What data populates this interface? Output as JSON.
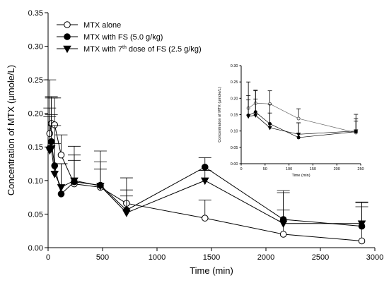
{
  "chart_data": [
    {
      "type": "line",
      "xlabel": "Time (min)",
      "ylabel": "Concentration of MTX (μmole/L)",
      "xlim": [
        0,
        3000
      ],
      "ylim": [
        0,
        0.35
      ],
      "xticks": [
        0,
        500,
        1000,
        1500,
        2000,
        2500,
        3000
      ],
      "yticks": [
        0.0,
        0.05,
        0.1,
        0.15,
        0.2,
        0.25,
        0.3,
        0.35
      ],
      "ytick_labels": [
        "0.00",
        "0.05",
        "0.10",
        "0.15",
        "0.20",
        "0.25",
        "0.30",
        "0.35"
      ],
      "grid": false,
      "legend_position": "top-left",
      "series": [
        {
          "name": "MTX alone",
          "marker": "circle-open",
          "color": "#000000",
          "x": [
            15,
            30,
            60,
            120,
            240,
            480,
            720,
            1440,
            2160,
            2880
          ],
          "y": [
            0.17,
            0.185,
            0.183,
            0.138,
            0.095,
            0.09,
            0.066,
            0.044,
            0.02,
            0.01
          ],
          "err": [
            0.08,
            0.04,
            0.04,
            0.03,
            0.056,
            0.054,
            0.038,
            0.027,
            0.065,
            0.058
          ]
        },
        {
          "name": "MTX with FS (5.0 g/kg)",
          "marker": "circle-filled",
          "color": "#000000",
          "x": [
            15,
            30,
            60,
            120,
            240,
            480,
            720,
            1440,
            2160,
            2880
          ],
          "y": [
            0.148,
            0.158,
            0.122,
            0.08,
            0.098,
            0.093,
            0.056,
            0.12,
            0.042,
            0.032
          ],
          "err": [
            0.06,
            0.065,
            0.06,
            0.045,
            0.04,
            0.035,
            0.03,
            0.014,
            0.04,
            0.035
          ]
        },
        {
          "name": "MTX with 7th dose of FS (2.5 g/kg)",
          "name_parts": [
            "MTX with 7",
            "th",
            " dose of FS (2.5 g/kg)"
          ],
          "marker": "triangle-down-filled",
          "color": "#000000",
          "x": [
            15,
            30,
            60,
            120,
            240,
            480,
            720,
            1440,
            2160,
            2880
          ],
          "y": [
            0.145,
            0.148,
            0.11,
            0.09,
            0.1,
            0.092,
            0.052,
            0.1,
            0.036,
            0.036
          ],
          "err": [
            0.05,
            0.05,
            0.045,
            0.035,
            0.03,
            0.025,
            0.025,
            0.015,
            0.02,
            0.025
          ]
        }
      ]
    },
    {
      "type": "line",
      "inset": true,
      "xlabel": "Time (min)",
      "ylabel": "Concentration of MTX (μmole/L)",
      "xlim": [
        0,
        250
      ],
      "ylim": [
        0,
        0.3
      ],
      "xticks": [
        0,
        50,
        100,
        150,
        200,
        250
      ],
      "yticks": [
        0.0,
        0.05,
        0.1,
        0.15,
        0.2,
        0.25,
        0.3
      ],
      "ytick_labels": [
        "0.00",
        "0.05",
        "0.10",
        "0.15",
        "0.20",
        "0.25",
        "0.30"
      ],
      "grid": false,
      "series": [
        {
          "marker": "circle-open",
          "color": "#666666",
          "x": [
            15,
            30,
            60,
            120,
            240
          ],
          "y": [
            0.17,
            0.185,
            0.183,
            0.138,
            0.095
          ],
          "err": [
            0.08,
            0.04,
            0.04,
            0.03,
            0.056
          ]
        },
        {
          "marker": "circle-filled",
          "color": "#000000",
          "x": [
            15,
            30,
            60,
            120,
            240
          ],
          "y": [
            0.148,
            0.158,
            0.122,
            0.08,
            0.098
          ],
          "err": [
            0.06,
            0.065,
            0.06,
            0.045,
            0.04
          ]
        },
        {
          "marker": "triangle-down-filled",
          "color": "#000000",
          "x": [
            15,
            30,
            60,
            120,
            240
          ],
          "y": [
            0.145,
            0.148,
            0.11,
            0.09,
            0.1
          ],
          "err": [
            0.05,
            0.05,
            0.045,
            0.035,
            0.03
          ]
        }
      ]
    }
  ]
}
